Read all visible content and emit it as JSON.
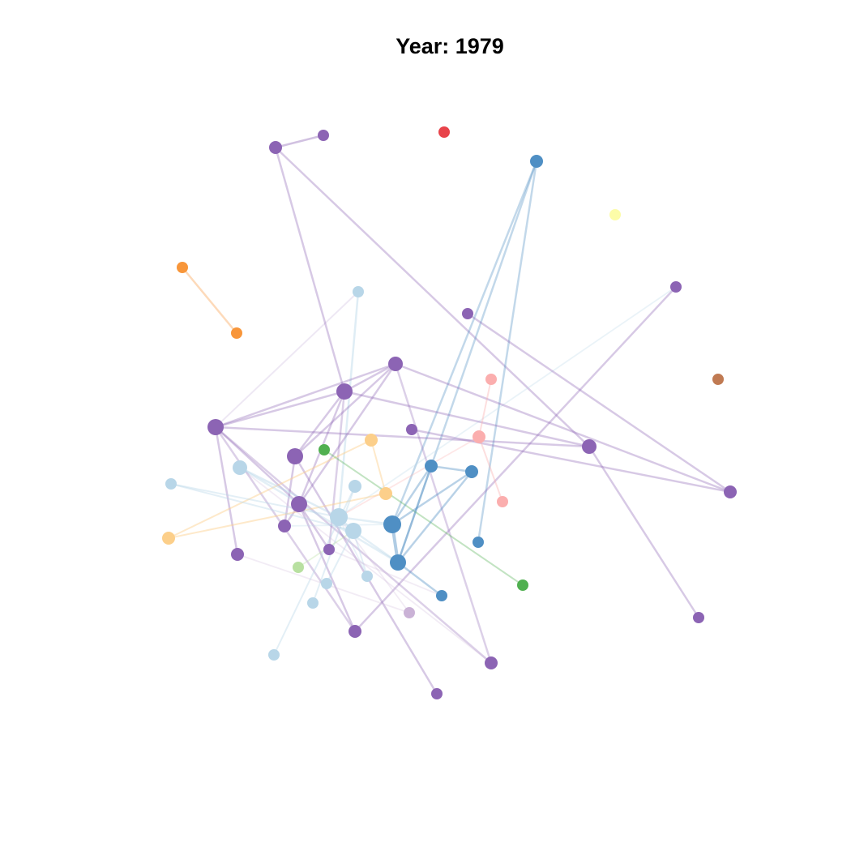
{
  "title": "Year: 1979",
  "colors": {
    "purple": "#8c64b4",
    "purple_light": "#cab2d6",
    "dark_blue": "#4f8fc4",
    "light_blue": "#b8d6e8",
    "orange": "#f8963a",
    "light_orange": "#fccf8a",
    "pink": "#fbaeae",
    "green": "#50b050",
    "light_green": "#b8e0a0",
    "red": "#e8434a",
    "yellow": "#fcfca8",
    "brown": "#c07a52"
  }
}
